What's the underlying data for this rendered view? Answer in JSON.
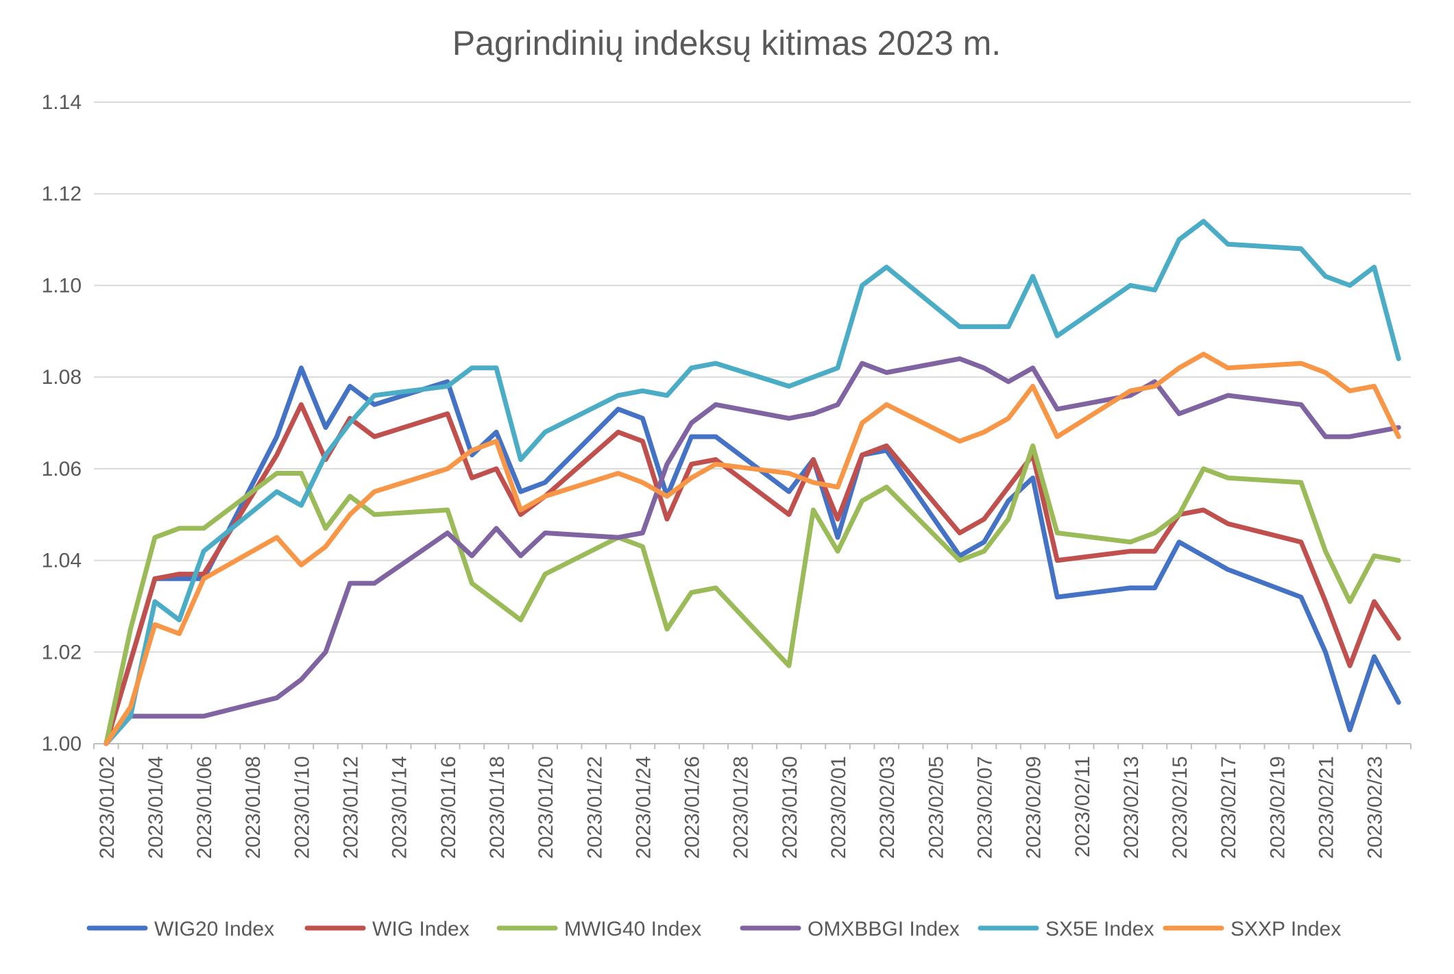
{
  "chart_data": {
    "type": "line",
    "title": "Pagrindinių indeksų kitimas 2023 m.",
    "xlabel": "",
    "ylabel": "",
    "ylim": [
      1.0,
      1.14
    ],
    "yticks": [
      "1.00",
      "1.02",
      "1.04",
      "1.06",
      "1.08",
      "1.10",
      "1.12",
      "1.14"
    ],
    "grid": true,
    "legend_position": "bottom",
    "x_tick_labels": [
      "2023/01/02",
      "2023/01/04",
      "2023/01/06",
      "2023/01/08",
      "2023/01/10",
      "2023/01/12",
      "2023/01/14",
      "2023/01/16",
      "2023/01/18",
      "2023/01/20",
      "2023/01/22",
      "2023/01/24",
      "2023/01/26",
      "2023/01/28",
      "2023/01/30",
      "2023/02/01",
      "2023/02/03",
      "2023/02/05",
      "2023/02/07",
      "2023/02/09",
      "2023/02/11",
      "2023/02/13",
      "2023/02/15",
      "2023/02/17",
      "2023/02/19",
      "2023/02/21",
      "2023/02/23"
    ],
    "x": [
      "2023/01/02",
      "2023/01/03",
      "2023/01/04",
      "2023/01/05",
      "2023/01/06",
      "2023/01/09",
      "2023/01/10",
      "2023/01/11",
      "2023/01/12",
      "2023/01/13",
      "2023/01/16",
      "2023/01/17",
      "2023/01/18",
      "2023/01/19",
      "2023/01/20",
      "2023/01/23",
      "2023/01/24",
      "2023/01/25",
      "2023/01/26",
      "2023/01/27",
      "2023/01/30",
      "2023/01/31",
      "2023/02/01",
      "2023/02/02",
      "2023/02/03",
      "2023/02/06",
      "2023/02/07",
      "2023/02/08",
      "2023/02/09",
      "2023/02/10",
      "2023/02/13",
      "2023/02/14",
      "2023/02/15",
      "2023/02/16",
      "2023/02/17",
      "2023/02/20",
      "2023/02/21",
      "2023/02/22",
      "2023/02/23",
      "2023/02/24"
    ],
    "series": [
      {
        "name": "WIG20 Index",
        "color": "#4472C4",
        "values": [
          1.0,
          1.018,
          1.036,
          1.036,
          1.036,
          1.067,
          1.082,
          1.069,
          1.078,
          1.074,
          1.079,
          1.063,
          1.068,
          1.055,
          1.057,
          1.073,
          1.071,
          1.054,
          1.067,
          1.067,
          1.055,
          1.062,
          1.045,
          1.063,
          1.064,
          1.041,
          1.044,
          1.053,
          1.058,
          1.032,
          1.034,
          1.034,
          1.044,
          1.041,
          1.038,
          1.032,
          1.02,
          1.003,
          1.019,
          1.009
        ]
      },
      {
        "name": "WIG Index",
        "color": "#C0504D",
        "values": [
          1.0,
          1.018,
          1.036,
          1.037,
          1.037,
          1.063,
          1.074,
          1.062,
          1.071,
          1.067,
          1.072,
          1.058,
          1.06,
          1.05,
          1.054,
          1.068,
          1.066,
          1.049,
          1.061,
          1.062,
          1.05,
          1.062,
          1.049,
          1.063,
          1.065,
          1.046,
          1.049,
          1.056,
          1.063,
          1.04,
          1.042,
          1.042,
          1.05,
          1.051,
          1.048,
          1.044,
          1.031,
          1.017,
          1.031,
          1.023
        ]
      },
      {
        "name": "MWIG40 Index",
        "color": "#9BBB59",
        "values": [
          1.0,
          1.025,
          1.045,
          1.047,
          1.047,
          1.059,
          1.059,
          1.047,
          1.054,
          1.05,
          1.051,
          1.035,
          1.031,
          1.027,
          1.037,
          1.045,
          1.043,
          1.025,
          1.033,
          1.034,
          1.017,
          1.051,
          1.042,
          1.053,
          1.056,
          1.04,
          1.042,
          1.049,
          1.065,
          1.046,
          1.044,
          1.046,
          1.05,
          1.06,
          1.058,
          1.057,
          1.042,
          1.031,
          1.041,
          1.04
        ]
      },
      {
        "name": "OMXBBGI Index",
        "color": "#8064A2",
        "values": [
          1.0,
          1.006,
          1.006,
          1.006,
          1.006,
          1.01,
          1.014,
          1.02,
          1.035,
          1.035,
          1.046,
          1.041,
          1.047,
          1.041,
          1.046,
          1.045,
          1.046,
          1.061,
          1.07,
          1.074,
          1.071,
          1.072,
          1.074,
          1.083,
          1.081,
          1.084,
          1.082,
          1.079,
          1.082,
          1.073,
          1.076,
          1.079,
          1.072,
          1.074,
          1.076,
          1.074,
          1.067,
          1.067,
          1.068,
          1.069
        ]
      },
      {
        "name": "SX5E Index",
        "color": "#4BACC6",
        "values": [
          1.0,
          1.006,
          1.031,
          1.027,
          1.042,
          1.055,
          1.052,
          1.063,
          1.07,
          1.076,
          1.078,
          1.082,
          1.082,
          1.062,
          1.068,
          1.076,
          1.077,
          1.076,
          1.082,
          1.083,
          1.078,
          1.08,
          1.082,
          1.1,
          1.104,
          1.091,
          1.091,
          1.091,
          1.102,
          1.089,
          1.1,
          1.099,
          1.11,
          1.114,
          1.109,
          1.108,
          1.102,
          1.1,
          1.104,
          1.084
        ]
      },
      {
        "name": "SXXP Index",
        "color": "#F79646",
        "values": [
          1.0,
          1.008,
          1.026,
          1.024,
          1.036,
          1.045,
          1.039,
          1.043,
          1.05,
          1.055,
          1.06,
          1.064,
          1.066,
          1.051,
          1.054,
          1.059,
          1.057,
          1.054,
          1.058,
          1.061,
          1.059,
          1.057,
          1.056,
          1.07,
          1.074,
          1.066,
          1.068,
          1.071,
          1.078,
          1.067,
          1.077,
          1.078,
          1.082,
          1.085,
          1.082,
          1.083,
          1.081,
          1.077,
          1.078,
          1.067
        ]
      }
    ]
  }
}
